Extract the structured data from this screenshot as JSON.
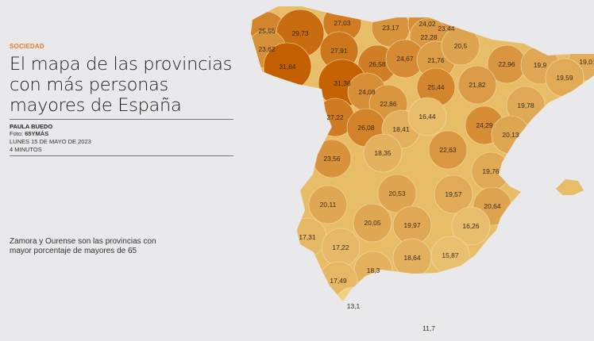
{
  "article": {
    "section": "SOCIEDAD",
    "title": "El mapa de las provincias con más personas mayores de España",
    "author": "PAULA BUEDO",
    "photo_label": "Foto:",
    "photo_credit": "65YMÁS",
    "date": "LUNES 15 DE MAYO DE 2023",
    "read_time": "4 MINUTOS",
    "caption": "Zamora y Ourense son las provincias con mayor porcentaje de mayores de 65"
  },
  "map": {
    "color_low": "#f0d284",
    "color_high": "#c45e00",
    "values": [
      "25,55",
      "29,73",
      "27,03",
      "23,17",
      "24,02",
      "23,44",
      "22,28",
      "23,62",
      "27,91",
      "26,58",
      "24,67",
      "21,76",
      "20,5",
      "22,96",
      "19,9",
      "19,01",
      "31,84",
      "31,38",
      "24,08",
      "25,44",
      "21,82",
      "19,59",
      "22,86",
      "19,78",
      "27,22",
      "26,08",
      "18,41",
      "16,44",
      "24,29",
      "20,13",
      "18,35",
      "22,63",
      "23,56",
      "19,76",
      "20,53",
      "19,57",
      "20,11",
      "20,64",
      "20,05",
      "19,97",
      "16,26",
      "17,31",
      "17,22",
      "18,64",
      "15,87",
      "18,3",
      "17,49",
      "13,1",
      "11,7"
    ]
  }
}
